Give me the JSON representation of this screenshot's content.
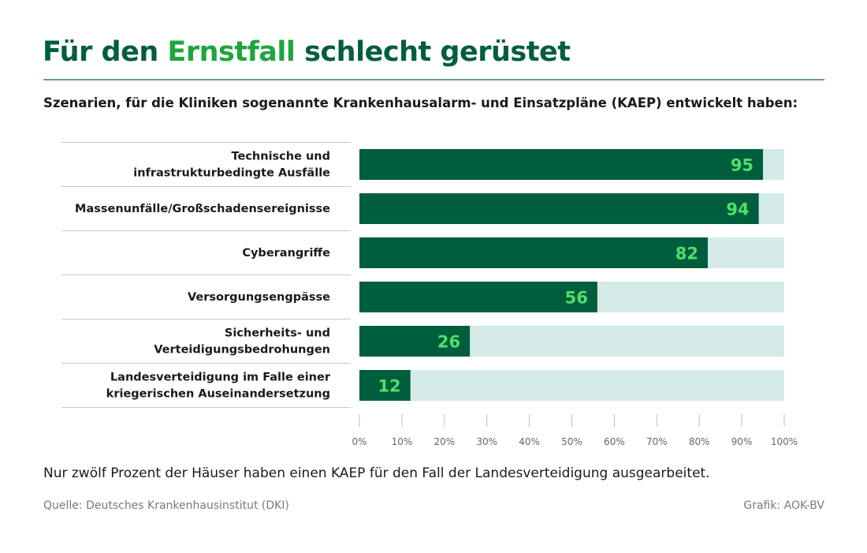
{
  "title": {
    "before": "Für den ",
    "highlight": "Ernstfall",
    "after": " schlecht gerüstet"
  },
  "subtitle": "Szenarien, für die Kliniken sogenannte Krankenhausalarm- und Einsatzpläne (KAEP) entwickelt haben:",
  "note": "Nur zwölf Prozent der Häuser haben einen KAEP für den Fall der Landesverteidigung ausgearbeitet.",
  "source": "Quelle: Deutsches Krankenhausinstitut (DKI)",
  "credit": "Grafik: AOK-BV",
  "colors": {
    "bar": "#005e3c",
    "track": "#d3eae8",
    "value_label": "#4ee06b",
    "title": "#005e3c",
    "title_highlight": "#1fa53f"
  },
  "chart_data": {
    "type": "bar",
    "orientation": "horizontal",
    "categories": [
      [
        "Technische und",
        "infrastrukturbedingte Ausfälle"
      ],
      [
        "Massenunfälle/Großschadensereignisse"
      ],
      [
        "Cyberangriffe"
      ],
      [
        "Versorgungsengpässe"
      ],
      [
        "Sicherheits- und",
        "Verteidigungsbedrohungen"
      ],
      [
        "Landesverteidigung im Falle einer",
        "kriegerischen Auseinandersetzung"
      ]
    ],
    "values": [
      95,
      94,
      82,
      56,
      26,
      12
    ],
    "xlim": [
      0,
      100
    ],
    "xticks": [
      "0%",
      "10%",
      "20%",
      "30%",
      "40%",
      "50%",
      "60%",
      "70%",
      "80%",
      "90%",
      "100%"
    ],
    "grid": false
  }
}
